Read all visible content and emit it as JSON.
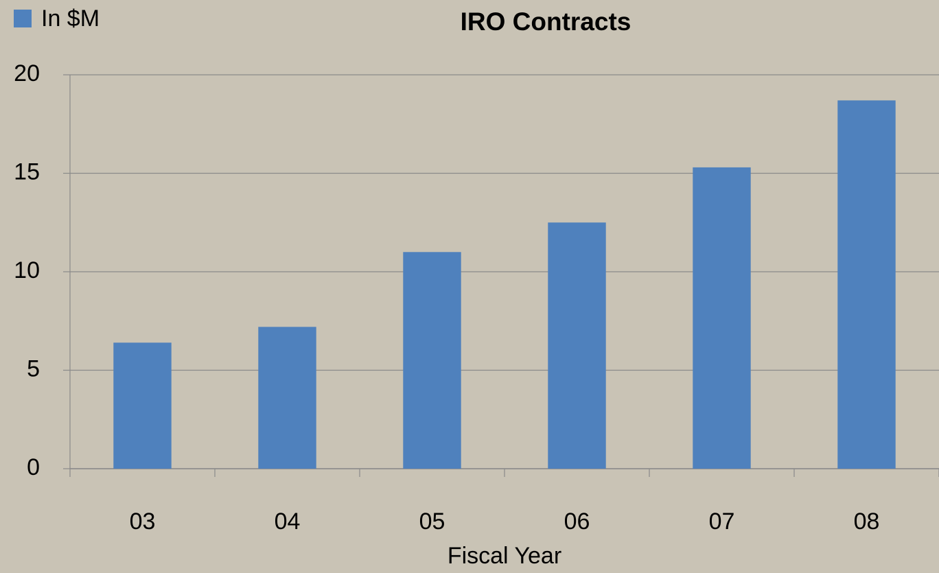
{
  "chart_data": {
    "type": "bar",
    "title": "IRO Contracts",
    "x_label": "Fiscal Year",
    "categories": [
      "03",
      "04",
      "05",
      "06",
      "07",
      "08"
    ],
    "series": [
      {
        "name": "In $M",
        "color": "#4f81bd",
        "values": [
          6.4,
          7.2,
          11,
          12.5,
          15.3,
          18.7
        ]
      }
    ],
    "ylim": [
      0,
      20
    ],
    "yticks": [
      0,
      5,
      10,
      15,
      20
    ],
    "grid": true,
    "legend": "top-left"
  }
}
